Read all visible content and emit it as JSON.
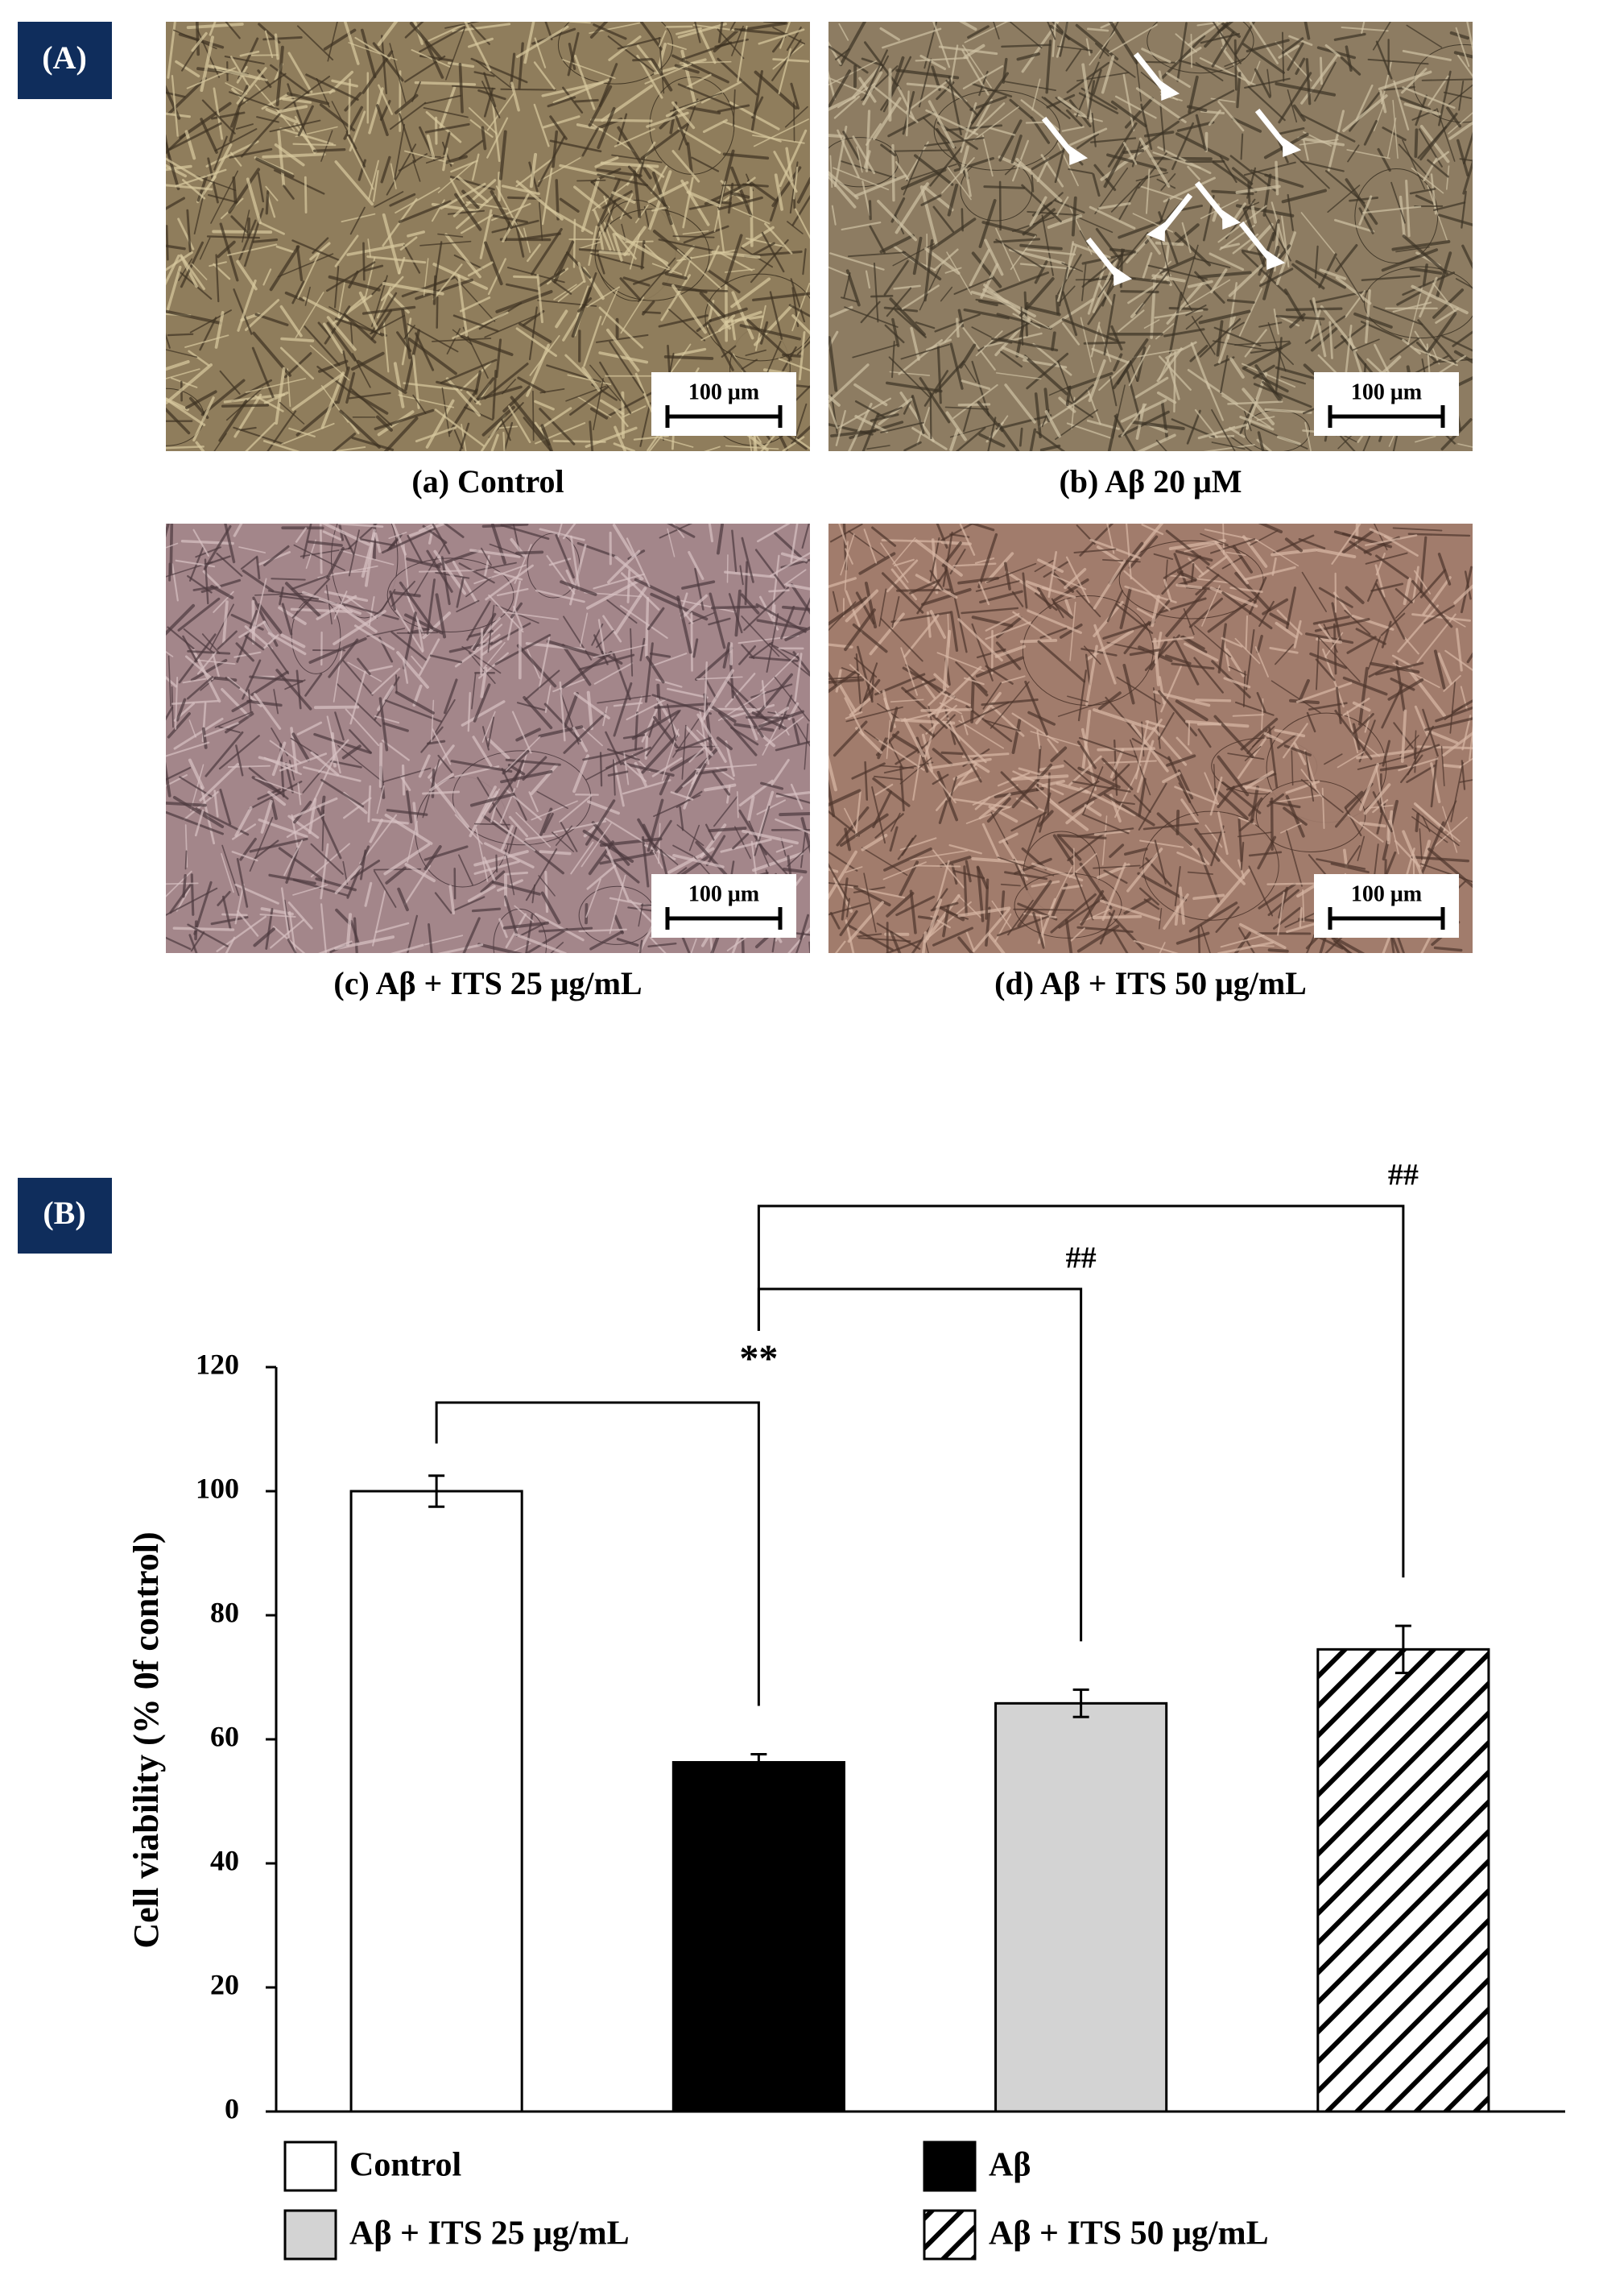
{
  "panel_a": {
    "label": "(A)",
    "images": [
      {
        "caption": "(a) Control",
        "scale_bar": "100 μm"
      },
      {
        "caption": "(b) Aβ 20 μM",
        "scale_bar": "100 μm"
      },
      {
        "caption": "(c) Aβ + ITS 25 μg/mL",
        "scale_bar": "100 μm"
      },
      {
        "caption": "(d) Aβ + ITS 50 μg/mL",
        "scale_bar": "100 μm"
      }
    ]
  },
  "panel_b": {
    "label": "(B)"
  },
  "chart_data": {
    "type": "bar",
    "ylabel": "Cell viability (% 0f control)",
    "categories": [
      "Control",
      "Aβ",
      "Aβ + ITS 25 μg/mL",
      "Aβ + ITS 50 μg/mL"
    ],
    "values": [
      100,
      56.3,
      65.8,
      74.5
    ],
    "errors": [
      2.5,
      1.3,
      2.2,
      3.8
    ],
    "colors": [
      "#ffffff",
      "#000000",
      "#d3d3d3",
      "#ffffff"
    ],
    "hatched": [
      false,
      false,
      false,
      true
    ],
    "ylim": [
      0,
      120
    ],
    "yticks": [
      0,
      20,
      40,
      60,
      80,
      100,
      120
    ],
    "comparisons": [
      {
        "from": 0,
        "to": 1,
        "label": "**"
      },
      {
        "from": 1,
        "to": 2,
        "label": "##"
      },
      {
        "from": 1,
        "to": 3,
        "label": "##"
      }
    ],
    "legend": "bottom"
  }
}
